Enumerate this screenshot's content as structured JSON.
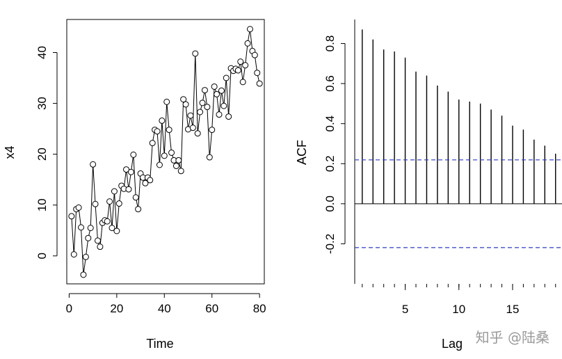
{
  "chart_data": [
    {
      "type": "line",
      "title": "",
      "xlabel": "Time",
      "ylabel": "x4",
      "xlim": [
        -1,
        82
      ],
      "ylim": [
        -5.5,
        46.5
      ],
      "x_ticks": [
        0,
        20,
        40,
        60,
        80
      ],
      "y_ticks": [
        0,
        10,
        20,
        30,
        40
      ],
      "x_tick_labels": [
        "0",
        "20",
        "40",
        "60",
        "80"
      ],
      "y_tick_labels": [
        "0",
        "10",
        "20",
        "30",
        "40"
      ],
      "marker": "open-circle",
      "series": [
        {
          "name": "x4",
          "x": [
            1,
            2,
            3,
            4,
            5,
            6,
            7,
            8,
            9,
            10,
            11,
            12,
            13,
            14,
            15,
            16,
            17,
            18,
            19,
            20,
            21,
            22,
            23,
            24,
            25,
            26,
            27,
            28,
            29,
            30,
            31,
            32,
            33,
            34,
            35,
            36,
            37,
            38,
            39,
            40,
            41,
            42,
            43,
            44,
            45,
            46,
            47,
            48,
            49,
            50,
            51,
            52,
            53,
            54,
            55,
            56,
            57,
            58,
            59,
            60,
            61,
            62,
            63,
            64,
            65,
            66,
            67,
            68,
            69,
            70,
            71,
            72,
            73,
            74,
            75,
            76,
            77,
            78,
            79,
            80
          ],
          "values": [
            7.8,
            0.3,
            9.2,
            9.5,
            5.6,
            -3.7,
            -0.2,
            3.5,
            5.5,
            18.0,
            10.2,
            3.0,
            1.8,
            6.5,
            7.0,
            6.8,
            10.7,
            5.5,
            12.7,
            4.9,
            10.3,
            13.8,
            13.2,
            17.0,
            13.1,
            16.5,
            19.9,
            11.5,
            9.2,
            16.2,
            15.4,
            14.3,
            15.4,
            14.9,
            22.2,
            24.8,
            24.5,
            17.9,
            26.6,
            19.7,
            30.3,
            24.8,
            20.3,
            18.8,
            17.7,
            18.8,
            16.7,
            30.8,
            29.8,
            24.9,
            27.6,
            25.2,
            39.8,
            24.1,
            28.3,
            30.1,
            32.6,
            29.3,
            19.4,
            24.8,
            33.3,
            31.8,
            27.8,
            32.5,
            29.5,
            35.0,
            27.4,
            36.9,
            36.4,
            36.8,
            36.5,
            38.2,
            34.2,
            37.5,
            41.8,
            44.6,
            40.3,
            39.5,
            36.0,
            33.9
          ]
        }
      ]
    },
    {
      "type": "bar",
      "title": "",
      "xlabel": "Lag",
      "ylabel": "ACF",
      "xlim": [
        0.3,
        19.6
      ],
      "ylim": [
        -0.4,
        0.92
      ],
      "x_ticks": [
        5,
        10,
        15
      ],
      "x_tick_labels": [
        "5",
        "10",
        "15"
      ],
      "y_ticks": [
        -0.2,
        0.0,
        0.2,
        0.4,
        0.6,
        0.8
      ],
      "y_tick_labels": [
        "-0.2",
        "0.0",
        "0.2",
        "0.4",
        "0.6",
        "0.8"
      ],
      "minor_x_ticks": [
        1,
        2,
        3,
        4,
        5,
        6,
        7,
        8,
        9,
        10,
        11,
        12,
        13,
        14,
        15,
        16,
        17,
        18,
        19
      ],
      "confidence_bounds": [
        0.219,
        -0.219
      ],
      "series": [
        {
          "name": "ACF",
          "lags": [
            1,
            2,
            3,
            4,
            5,
            6,
            7,
            8,
            9,
            10,
            11,
            12,
            13,
            14,
            15,
            16,
            17,
            18,
            19
          ],
          "values": [
            0.87,
            0.82,
            0.77,
            0.76,
            0.73,
            0.66,
            0.64,
            0.59,
            0.56,
            0.52,
            0.51,
            0.5,
            0.47,
            0.44,
            0.39,
            0.37,
            0.32,
            0.29,
            0.25
          ]
        }
      ]
    }
  ],
  "watermark": "知乎 @陆桑"
}
